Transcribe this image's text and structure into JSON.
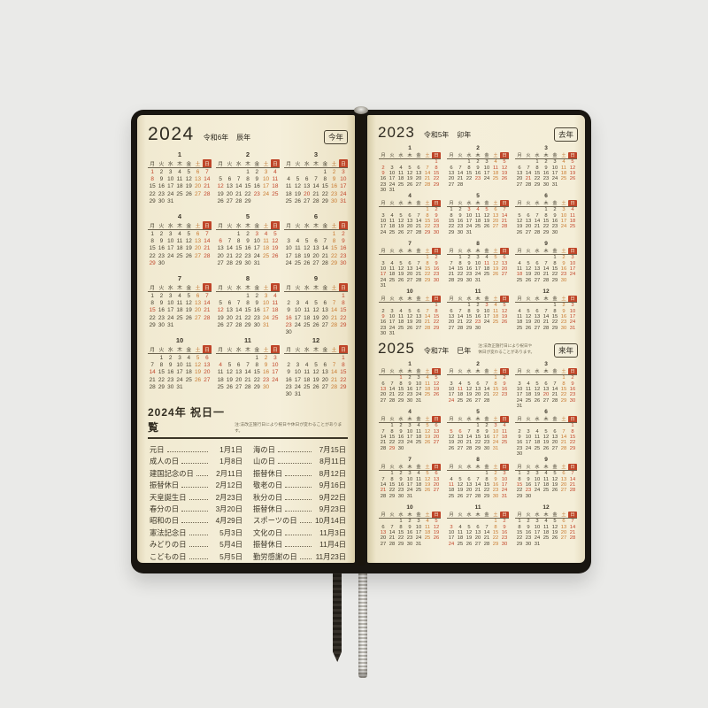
{
  "scene": {
    "background_color": "#eaeae8",
    "cover_color": "#191611",
    "page_color": "#f5efda",
    "accent_red": "#c2452a",
    "accent_saturday": "#c97a2f"
  },
  "weekdays": [
    "月",
    "火",
    "水",
    "木",
    "金",
    "土",
    "日"
  ],
  "pages": {
    "left": {
      "year_block": {
        "year": "2024",
        "era": "令和6年",
        "zodiac": "辰年",
        "badge": "今年"
      },
      "holiday_section": {
        "title": "2024年 祝日一覧",
        "note": "注:法改正施行日により祝日や休日が変わることがあります。",
        "columns": [
          [
            {
              "name": "元日",
              "date": "1月1日"
            },
            {
              "name": "成人の日",
              "date": "1月8日"
            },
            {
              "name": "建国記念の日",
              "date": "2月11日"
            },
            {
              "name": "振替休日",
              "date": "2月12日"
            },
            {
              "name": "天皇誕生日",
              "date": "2月23日"
            },
            {
              "name": "春分の日",
              "date": "3月20日"
            },
            {
              "name": "昭和の日",
              "date": "4月29日"
            },
            {
              "name": "憲法記念日",
              "date": "5月3日"
            },
            {
              "name": "みどりの日",
              "date": "5月4日"
            },
            {
              "name": "こどもの日",
              "date": "5月5日"
            },
            {
              "name": "振替休日",
              "date": "5月6日"
            }
          ],
          [
            {
              "name": "海の日",
              "date": "7月15日"
            },
            {
              "name": "山の日",
              "date": "8月11日"
            },
            {
              "name": "振替休日",
              "date": "8月12日"
            },
            {
              "name": "敬老の日",
              "date": "9月16日"
            },
            {
              "name": "秋分の日",
              "date": "9月22日"
            },
            {
              "name": "振替休日",
              "date": "9月23日"
            },
            {
              "name": "スポーツの日",
              "date": "10月14日"
            },
            {
              "name": "文化の日",
              "date": "11月3日"
            },
            {
              "name": "振替休日",
              "date": "11月4日"
            },
            {
              "name": "勤労感謝の日",
              "date": "11月23日"
            }
          ]
        ]
      }
    },
    "right": {
      "year_block_2023": {
        "year": "2023",
        "era": "令和5年",
        "zodiac": "卯年",
        "badge": "去年"
      },
      "year_block_2025": {
        "year": "2025",
        "era": "令和7年",
        "zodiac": "巳年",
        "badge": "来年",
        "note_line1": "注:法改正施行日により祝日や",
        "note_line2": "休日が変わることがあります。"
      }
    }
  },
  "calendars": {
    "y2024": {
      "months": [
        [
          0,
          31
        ],
        [
          3,
          29
        ],
        [
          4,
          31
        ],
        [
          0,
          30
        ],
        [
          2,
          31
        ],
        [
          5,
          30
        ],
        [
          0,
          31
        ],
        [
          3,
          31
        ],
        [
          6,
          30
        ],
        [
          1,
          31
        ],
        [
          4,
          30
        ],
        [
          6,
          31
        ]
      ],
      "holidays": [
        "1-1",
        "1-8",
        "2-11",
        "2-12",
        "2-23",
        "3-20",
        "4-29",
        "5-3",
        "5-4",
        "5-5",
        "5-6",
        "7-15",
        "8-11",
        "8-12",
        "9-16",
        "9-22",
        "9-23",
        "10-14",
        "11-3",
        "11-4",
        "11-23"
      ]
    },
    "y2023": {
      "months": [
        [
          6,
          31
        ],
        [
          2,
          28
        ],
        [
          2,
          31
        ],
        [
          5,
          30
        ],
        [
          0,
          31
        ],
        [
          3,
          30
        ],
        [
          5,
          31
        ],
        [
          1,
          31
        ],
        [
          4,
          30
        ],
        [
          6,
          31
        ],
        [
          2,
          30
        ],
        [
          4,
          31
        ]
      ],
      "holidays": [
        "1-1",
        "1-2",
        "1-9",
        "2-11",
        "2-23",
        "3-21",
        "4-29",
        "5-3",
        "5-4",
        "5-5",
        "7-17",
        "8-11",
        "9-18",
        "9-23",
        "10-9",
        "11-3",
        "11-23"
      ]
    },
    "y2025": {
      "months": [
        [
          2,
          31
        ],
        [
          5,
          28
        ],
        [
          5,
          31
        ],
        [
          1,
          30
        ],
        [
          3,
          31
        ],
        [
          6,
          30
        ],
        [
          1,
          31
        ],
        [
          4,
          31
        ],
        [
          0,
          30
        ],
        [
          2,
          31
        ],
        [
          5,
          30
        ],
        [
          0,
          31
        ]
      ],
      "holidays": [
        "1-1",
        "1-13",
        "2-11",
        "2-23",
        "2-24",
        "3-20",
        "4-29",
        "5-3",
        "5-4",
        "5-5",
        "5-6",
        "7-21",
        "8-11",
        "9-15",
        "9-23",
        "10-13",
        "11-3",
        "11-23",
        "11-24"
      ]
    }
  }
}
